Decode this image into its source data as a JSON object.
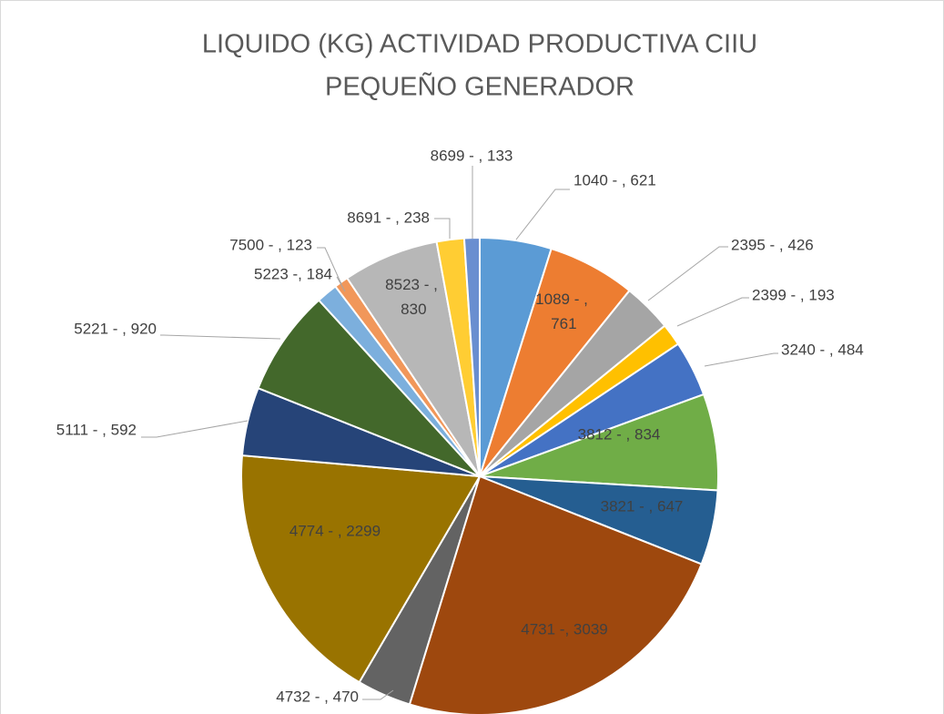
{
  "chart_data": {
    "type": "pie",
    "title": [
      "LIQUIDO (KG) ACTIVIDAD PRODUCTIVA CIIU",
      "PEQUEÑO GENERADOR"
    ],
    "values": [
      621,
      761,
      426,
      193,
      484,
      834,
      647,
      3039,
      470,
      2299,
      592,
      920,
      184,
      123,
      830,
      238,
      133
    ],
    "value_labels": [
      "1040 - , 621",
      "1089 - , 761",
      "2395 - , 426",
      "2399 - , 193",
      "3240 - , 484",
      "3812 - , 834",
      "3821 - , 647",
      "4731 -, 3039",
      "4732 - , 470",
      "4774 - , 2299",
      "5111 - , 592",
      "5221 - , 920",
      "5223 -, 184",
      "7500 - , 123",
      "8523 - , 830",
      "8691 - , 238",
      "8699 - , 133"
    ],
    "colors": [
      "#5b9bd5",
      "#ed7d31",
      "#a5a5a5",
      "#ffc000",
      "#4472c4",
      "#70ad47",
      "#255e91",
      "#9e480e",
      "#636363",
      "#997300",
      "#264478",
      "#43682b",
      "#7cafdd",
      "#f1975a",
      "#b7b7b7",
      "#ffcd33",
      "#698ed0"
    ]
  }
}
